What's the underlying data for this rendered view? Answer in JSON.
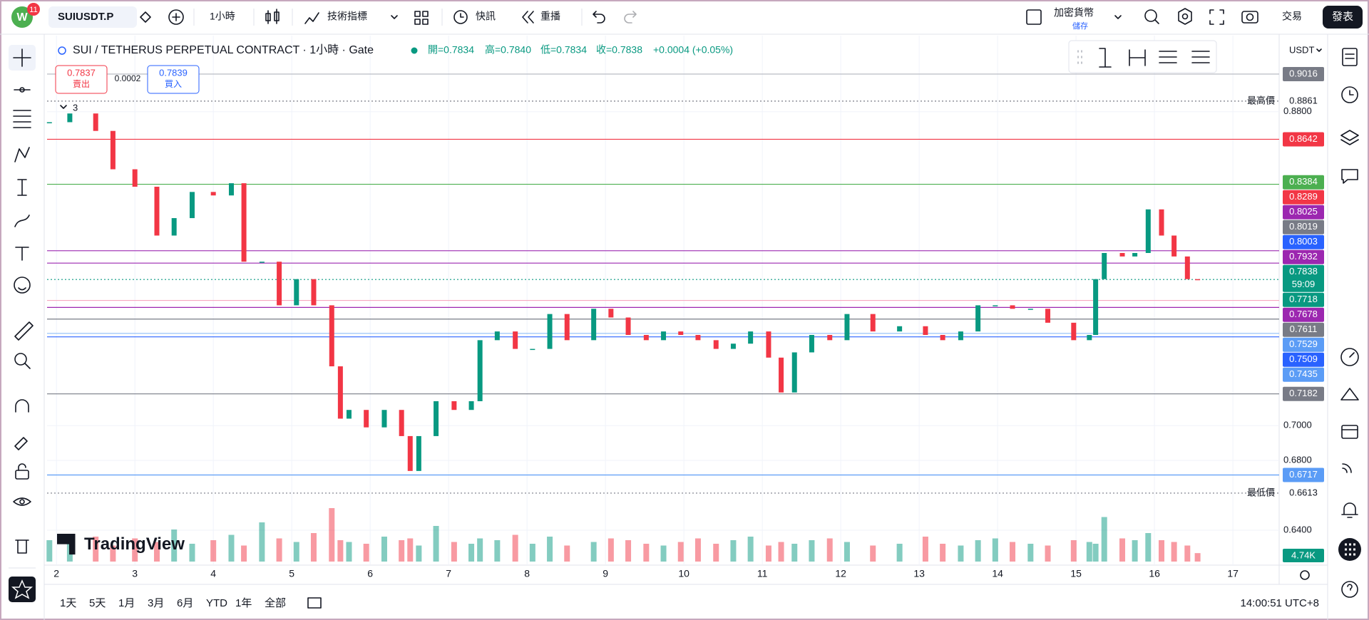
{
  "toolbar": {
    "notification_count": "11",
    "symbol": "SUIUSDT.P",
    "interval": "1小時",
    "indicators": "技術指標",
    "alerts": "快訊",
    "replay": "重播",
    "layout_name": "加密貨幣",
    "save": "儲存",
    "trade": "交易",
    "publish": "發表"
  },
  "legend": {
    "title": "SUI / TETHERUS PERPETUAL CONTRACT · 1小時 · Gate",
    "open": "開=0.7834",
    "high": "高=0.7840",
    "low": "低=0.7834",
    "close": "收=0.7838",
    "change": "+0.0004 (+0.05%)",
    "sell_price": "0.7837",
    "sell": "賣出",
    "spread": "0.0002",
    "buy_price": "0.7839",
    "buy": "買入",
    "indicators_count": "3"
  },
  "chart_data": {
    "type": "candlestick",
    "up_color": "#089981",
    "down_color": "#f23645",
    "currency": "USDT",
    "brand": "TradingView",
    "x": [
      1.91,
      2.17,
      2.5,
      2.72,
      3.0,
      3.28,
      3.5,
      3.73,
      4.0,
      4.23,
      4.39,
      4.62,
      4.84,
      5.06,
      5.28,
      5.51,
      5.62,
      5.73,
      5.95,
      6.18,
      6.4,
      6.51,
      6.62,
      6.84,
      7.07,
      7.29,
      7.4,
      7.62,
      7.85,
      8.07,
      8.29,
      8.51,
      8.85,
      9.07,
      9.29,
      9.52,
      9.74,
      9.96,
      10.18,
      10.41,
      10.63,
      10.85,
      11.08,
      11.24,
      11.41,
      11.63,
      11.86,
      12.08,
      12.41,
      12.75,
      13.08,
      13.3,
      13.53,
      13.75,
      13.97,
      14.19,
      14.42,
      14.64,
      14.97,
      15.17,
      15.25,
      15.36,
      15.59,
      15.75,
      15.92,
      16.09,
      16.25,
      16.42,
      16.55
    ],
    "values": [
      0.874,
      0.879,
      0.869,
      0.847,
      0.837,
      0.809,
      0.819,
      0.834,
      0.832,
      0.839,
      0.794,
      0.794,
      0.769,
      0.784,
      0.769,
      0.734,
      0.704,
      0.709,
      0.699,
      0.709,
      0.694,
      0.674,
      0.694,
      0.714,
      0.709,
      0.714,
      0.749,
      0.754,
      0.744,
      0.744,
      0.764,
      0.749,
      0.767,
      0.762,
      0.752,
      0.749,
      0.754,
      0.752,
      0.749,
      0.744,
      0.747,
      0.754,
      0.739,
      0.719,
      0.742,
      0.752,
      0.749,
      0.764,
      0.754,
      0.757,
      0.752,
      0.749,
      0.754,
      0.769,
      0.769,
      0.767,
      0.767,
      0.759,
      0.749,
      0.752,
      0.784,
      0.799,
      0.797,
      0.799,
      0.824,
      0.809,
      0.797,
      0.784,
      0.7838
    ],
    "xlim": [
      1.88,
      17.59
    ],
    "xticks": [
      2,
      3,
      4,
      5,
      6,
      7,
      8,
      9,
      10,
      11,
      12,
      13,
      14,
      15,
      16,
      17
    ],
    "ylim": [
      0.62,
      0.9216
    ],
    "yticks": [
      {
        "value": 0.88,
        "label": "0.8800"
      },
      {
        "value": 0.7,
        "label": "0.7000"
      },
      {
        "value": 0.68,
        "label": "0.6800"
      },
      {
        "value": 0.64,
        "label": "0.6400"
      }
    ],
    "grid": true,
    "volume": {
      "ylim": [
        0,
        60
      ],
      "values": [
        12,
        10,
        14,
        9,
        13,
        11,
        18,
        10,
        12,
        15,
        9,
        22,
        13,
        11,
        16,
        30,
        12,
        11,
        10,
        14,
        12,
        13,
        9,
        20,
        11,
        10,
        13,
        12,
        15,
        10,
        14,
        9,
        11,
        13,
        12,
        10,
        9,
        11,
        13,
        10,
        12,
        14,
        9,
        11,
        10,
        12,
        13,
        11,
        9,
        10,
        14,
        10,
        9,
        12,
        13,
        11,
        10,
        9,
        12,
        11,
        10,
        25,
        13,
        12,
        16,
        12,
        11,
        9,
        4.74
      ],
      "value_labels": [
        null,
        null,
        null,
        null,
        null,
        null,
        null,
        null,
        null,
        null,
        null,
        null,
        null,
        null,
        null,
        null,
        null,
        null,
        null,
        null,
        null,
        null,
        null,
        null,
        null,
        null,
        null,
        null,
        null,
        null,
        null,
        null,
        null,
        null,
        null,
        null,
        null,
        null,
        null,
        null,
        null,
        null,
        null,
        null,
        null,
        null,
        null,
        null,
        null,
        null,
        null,
        null,
        null,
        null,
        null,
        null,
        null,
        null,
        null,
        null,
        null,
        null,
        null,
        null,
        null,
        null,
        null,
        null,
        "4.74K"
      ]
    },
    "price_labels": [
      {
        "value": 0.9016,
        "color": "#787b86",
        "line": "#b2b5be"
      },
      {
        "value": 0.8861,
        "caption": "最高價",
        "line": "#787b86",
        "dash": true
      },
      {
        "value": 0.8642,
        "color": "#f23645",
        "line": "#f23645"
      },
      {
        "value": 0.8384,
        "color": "#4caf50",
        "line": "#4caf50"
      },
      {
        "value": 0.8289,
        "color": "#f23645"
      },
      {
        "value": 0.8025,
        "color": "#9c27b0"
      },
      {
        "value": 0.8019,
        "color": "#787b86"
      },
      {
        "value": 0.8003,
        "color": "#2962ff",
        "line": "#9c27b0"
      },
      {
        "value": 0.7932,
        "color": "#9c27b0",
        "line": "#9c27b0"
      },
      {
        "value": 0.7838,
        "color": "#089981",
        "countdown": "59:09",
        "line": "#089981",
        "dash": true
      },
      {
        "value": 0.7718,
        "color": "#089981",
        "line": "#f7a8c0"
      },
      {
        "value": 0.7678,
        "color": "#9c27b0",
        "line": "#9c27b0"
      },
      {
        "value": 0.7611,
        "color": "#787b86",
        "line": "#787b86"
      },
      {
        "value": 0.7529,
        "color": "#5b9cf6",
        "line": "#90bff9"
      },
      {
        "value": 0.7509,
        "color": "#2962ff",
        "line": "#2962ff"
      },
      {
        "value": 0.7435,
        "color": "#5b9cf6"
      },
      {
        "value": 0.7182,
        "color": "#787b86",
        "line": "#787b86"
      },
      {
        "value": 0.6717,
        "color": "#5b9cf6",
        "line": "#5b9cf6"
      },
      {
        "value": 0.6613,
        "caption": "最低價",
        "line": "#787b86",
        "dash": true
      }
    ]
  },
  "bottom_bar": {
    "ranges": [
      "1天",
      "5天",
      "1月",
      "3月",
      "6月",
      "YTD",
      "1年",
      "全部"
    ],
    "clock": "14:00:51 UTC+8"
  }
}
